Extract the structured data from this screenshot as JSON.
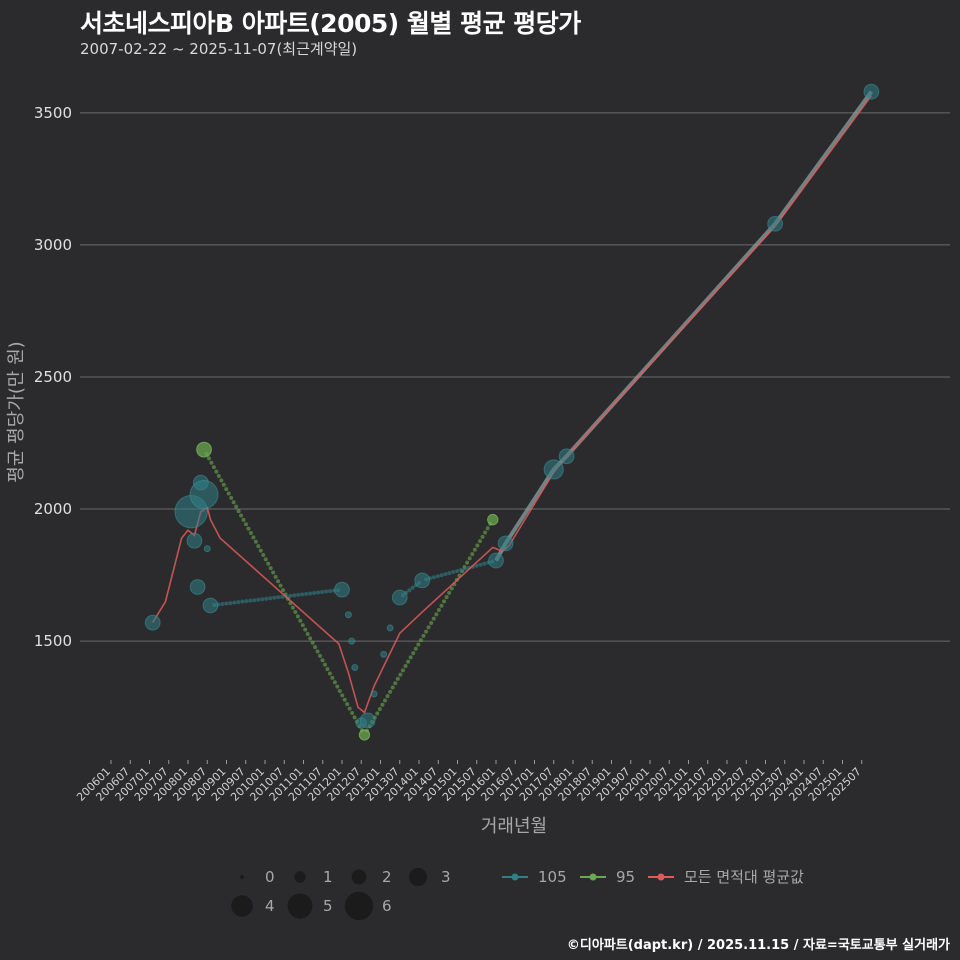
{
  "header": {
    "title": "서초네스피아B 아파트(2005) 월별 평균 평당가",
    "subtitle": "2007-02-22 ~ 2025-11-07(최근계약일)"
  },
  "footer": {
    "credit": "©디아파트(dapt.kr) / 2025.11.15 / 자료=국토교통부 실거래가"
  },
  "colors": {
    "background": "#2b2b2d",
    "grid": "#6b6b6b",
    "series_105": "#2f7f86",
    "series_95": "#6aa84f",
    "series_avg": "#e05a5a"
  },
  "chart_data": {
    "type": "scatter",
    "xlabel": "거래년월",
    "ylabel": "평균 평당가(만 원)",
    "ylim": [
      1050,
      3700
    ],
    "yticks": [
      1500,
      2000,
      2500,
      3000,
      3500
    ],
    "xticks": [
      "200601",
      "200607",
      "200701",
      "200707",
      "200801",
      "200807",
      "200901",
      "200907",
      "201001",
      "201007",
      "201101",
      "201107",
      "201201",
      "201207",
      "201301",
      "201307",
      "201401",
      "201407",
      "201501",
      "201507",
      "201601",
      "201607",
      "201701",
      "201707",
      "201801",
      "201807",
      "201901",
      "201907",
      "202001",
      "202007",
      "202101",
      "202107",
      "202201",
      "202207",
      "202301",
      "202307",
      "202401",
      "202407",
      "202501",
      "202507"
    ],
    "series": [
      {
        "name": "105",
        "points": [
          {
            "x": "2007-02",
            "y": 1570,
            "n": 2
          },
          {
            "x": "2008-02",
            "y": 1990,
            "n": 6
          },
          {
            "x": "2008-03",
            "y": 1880,
            "n": 2
          },
          {
            "x": "2008-04",
            "y": 1705,
            "n": 2
          },
          {
            "x": "2008-05",
            "y": 2100,
            "n": 2
          },
          {
            "x": "2008-06",
            "y": 2055,
            "n": 5
          },
          {
            "x": "2008-07",
            "y": 1850,
            "n": 0
          },
          {
            "x": "2008-08",
            "y": 1635,
            "n": 2
          },
          {
            "x": "2012-01",
            "y": 1695,
            "n": 2
          },
          {
            "x": "2012-03",
            "y": 1600,
            "n": 0
          },
          {
            "x": "2012-04",
            "y": 1500,
            "n": 0
          },
          {
            "x": "2012-05",
            "y": 1400,
            "n": 0
          },
          {
            "x": "2012-07",
            "y": 1190,
            "n": 1
          },
          {
            "x": "2012-09",
            "y": 1200,
            "n": 2
          },
          {
            "x": "2012-11",
            "y": 1300,
            "n": 0
          },
          {
            "x": "2013-02",
            "y": 1450,
            "n": 0
          },
          {
            "x": "2013-04",
            "y": 1550,
            "n": 0
          },
          {
            "x": "2013-07",
            "y": 1665,
            "n": 2
          },
          {
            "x": "2014-02",
            "y": 1730,
            "n": 2
          },
          {
            "x": "2016-01",
            "y": 1805,
            "n": 2
          },
          {
            "x": "2016-04",
            "y": 1870,
            "n": 2
          },
          {
            "x": "2017-07",
            "y": 2150,
            "n": 3
          },
          {
            "x": "2017-11",
            "y": 2200,
            "n": 2
          },
          {
            "x": "2023-04",
            "y": 3080,
            "n": 2
          },
          {
            "x": "2025-10",
            "y": 3580,
            "n": 2
          }
        ]
      },
      {
        "name": "95",
        "points": [
          {
            "x": "2008-06",
            "y": 2225,
            "n": 2
          },
          {
            "x": "2012-08",
            "y": 1145,
            "n": 1
          },
          {
            "x": "2015-12",
            "y": 1960,
            "n": 1
          }
        ]
      },
      {
        "name": "모든 면적대 평균값",
        "points": [
          {
            "x": "2007-02",
            "y": 1570
          },
          {
            "x": "2007-06",
            "y": 1650
          },
          {
            "x": "2007-11",
            "y": 1890
          },
          {
            "x": "2008-01",
            "y": 1920
          },
          {
            "x": "2008-03",
            "y": 1900
          },
          {
            "x": "2008-05",
            "y": 1990
          },
          {
            "x": "2008-07",
            "y": 2005
          },
          {
            "x": "2008-08",
            "y": 1960
          },
          {
            "x": "2008-11",
            "y": 1890
          },
          {
            "x": "2011-12",
            "y": 1490
          },
          {
            "x": "2012-03",
            "y": 1380
          },
          {
            "x": "2012-06",
            "y": 1250
          },
          {
            "x": "2012-08",
            "y": 1230
          },
          {
            "x": "2012-11",
            "y": 1330
          },
          {
            "x": "2013-07",
            "y": 1530
          },
          {
            "x": "2014-02",
            "y": 1610
          },
          {
            "x": "2015-12",
            "y": 1855
          },
          {
            "x": "2016-03",
            "y": 1840
          },
          {
            "x": "2016-05",
            "y": 1860
          },
          {
            "x": "2017-07",
            "y": 2140
          },
          {
            "x": "2017-11",
            "y": 2200
          },
          {
            "x": "2023-04",
            "y": 3070
          },
          {
            "x": "2025-10",
            "y": 3565
          }
        ]
      }
    ],
    "size_legend": [
      "0",
      "1",
      "2",
      "3",
      "4",
      "5",
      "6"
    ],
    "legend": [
      "105",
      "95",
      "모든 면적대 평균값"
    ],
    "legend_position": "bottom"
  }
}
